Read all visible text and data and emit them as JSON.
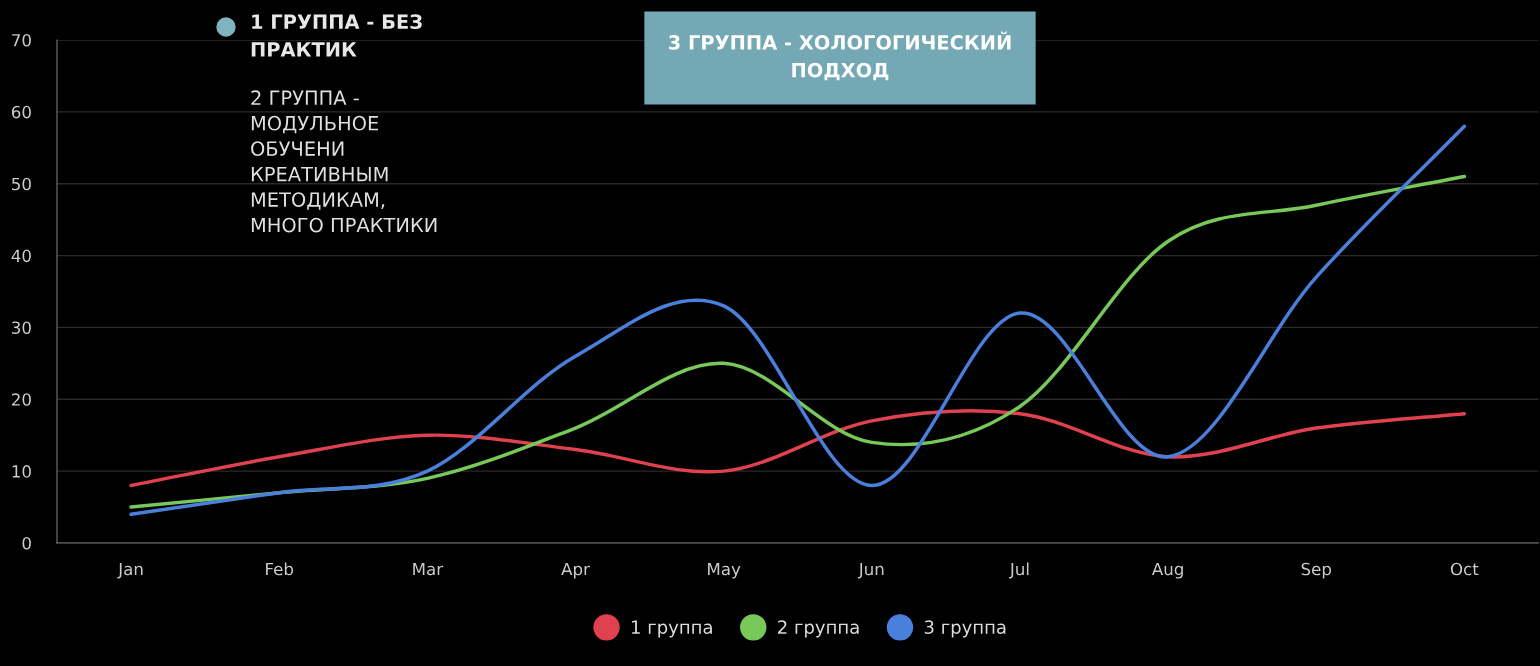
{
  "chart_data": {
    "type": "line",
    "categories": [
      "Jan",
      "Feb",
      "Mar",
      "Apr",
      "May",
      "Jun",
      "Jul",
      "Aug",
      "Sep",
      "Oct"
    ],
    "series": [
      {
        "name": "1 группа",
        "color": "#e0414f",
        "values": [
          8,
          12,
          15,
          13,
          10,
          17,
          18,
          12,
          16,
          18
        ]
      },
      {
        "name": "2 группа",
        "color": "#78c85a",
        "values": [
          5,
          7,
          9,
          16,
          25,
          14,
          19,
          42,
          47,
          51
        ]
      },
      {
        "name": "3 группа",
        "color": "#4a7fdc",
        "values": [
          4,
          7,
          10,
          26,
          33,
          8,
          32,
          12,
          37,
          58
        ]
      }
    ],
    "ylim": [
      0,
      70
    ],
    "yticks": [
      0,
      10,
      20,
      30,
      40,
      50,
      60,
      70
    ],
    "grid": "y",
    "legend": "bottom",
    "marker": "none",
    "line_style": "solid",
    "annotations": [
      "1 ГРУППА - БЕЗ\nПРАКТИК",
      "2 ГРУППА -\nМОДУЛЬНОЕ\nОБУЧЕНИ\nКРЕАТИВНЫМ\nМЕТОДИКАМ,\nМНОГО ПРАКТИКИ",
      "3 ГРУППА - ХОЛОГОГИЧЕСКИЙ\nПОДХОД"
    ]
  }
}
